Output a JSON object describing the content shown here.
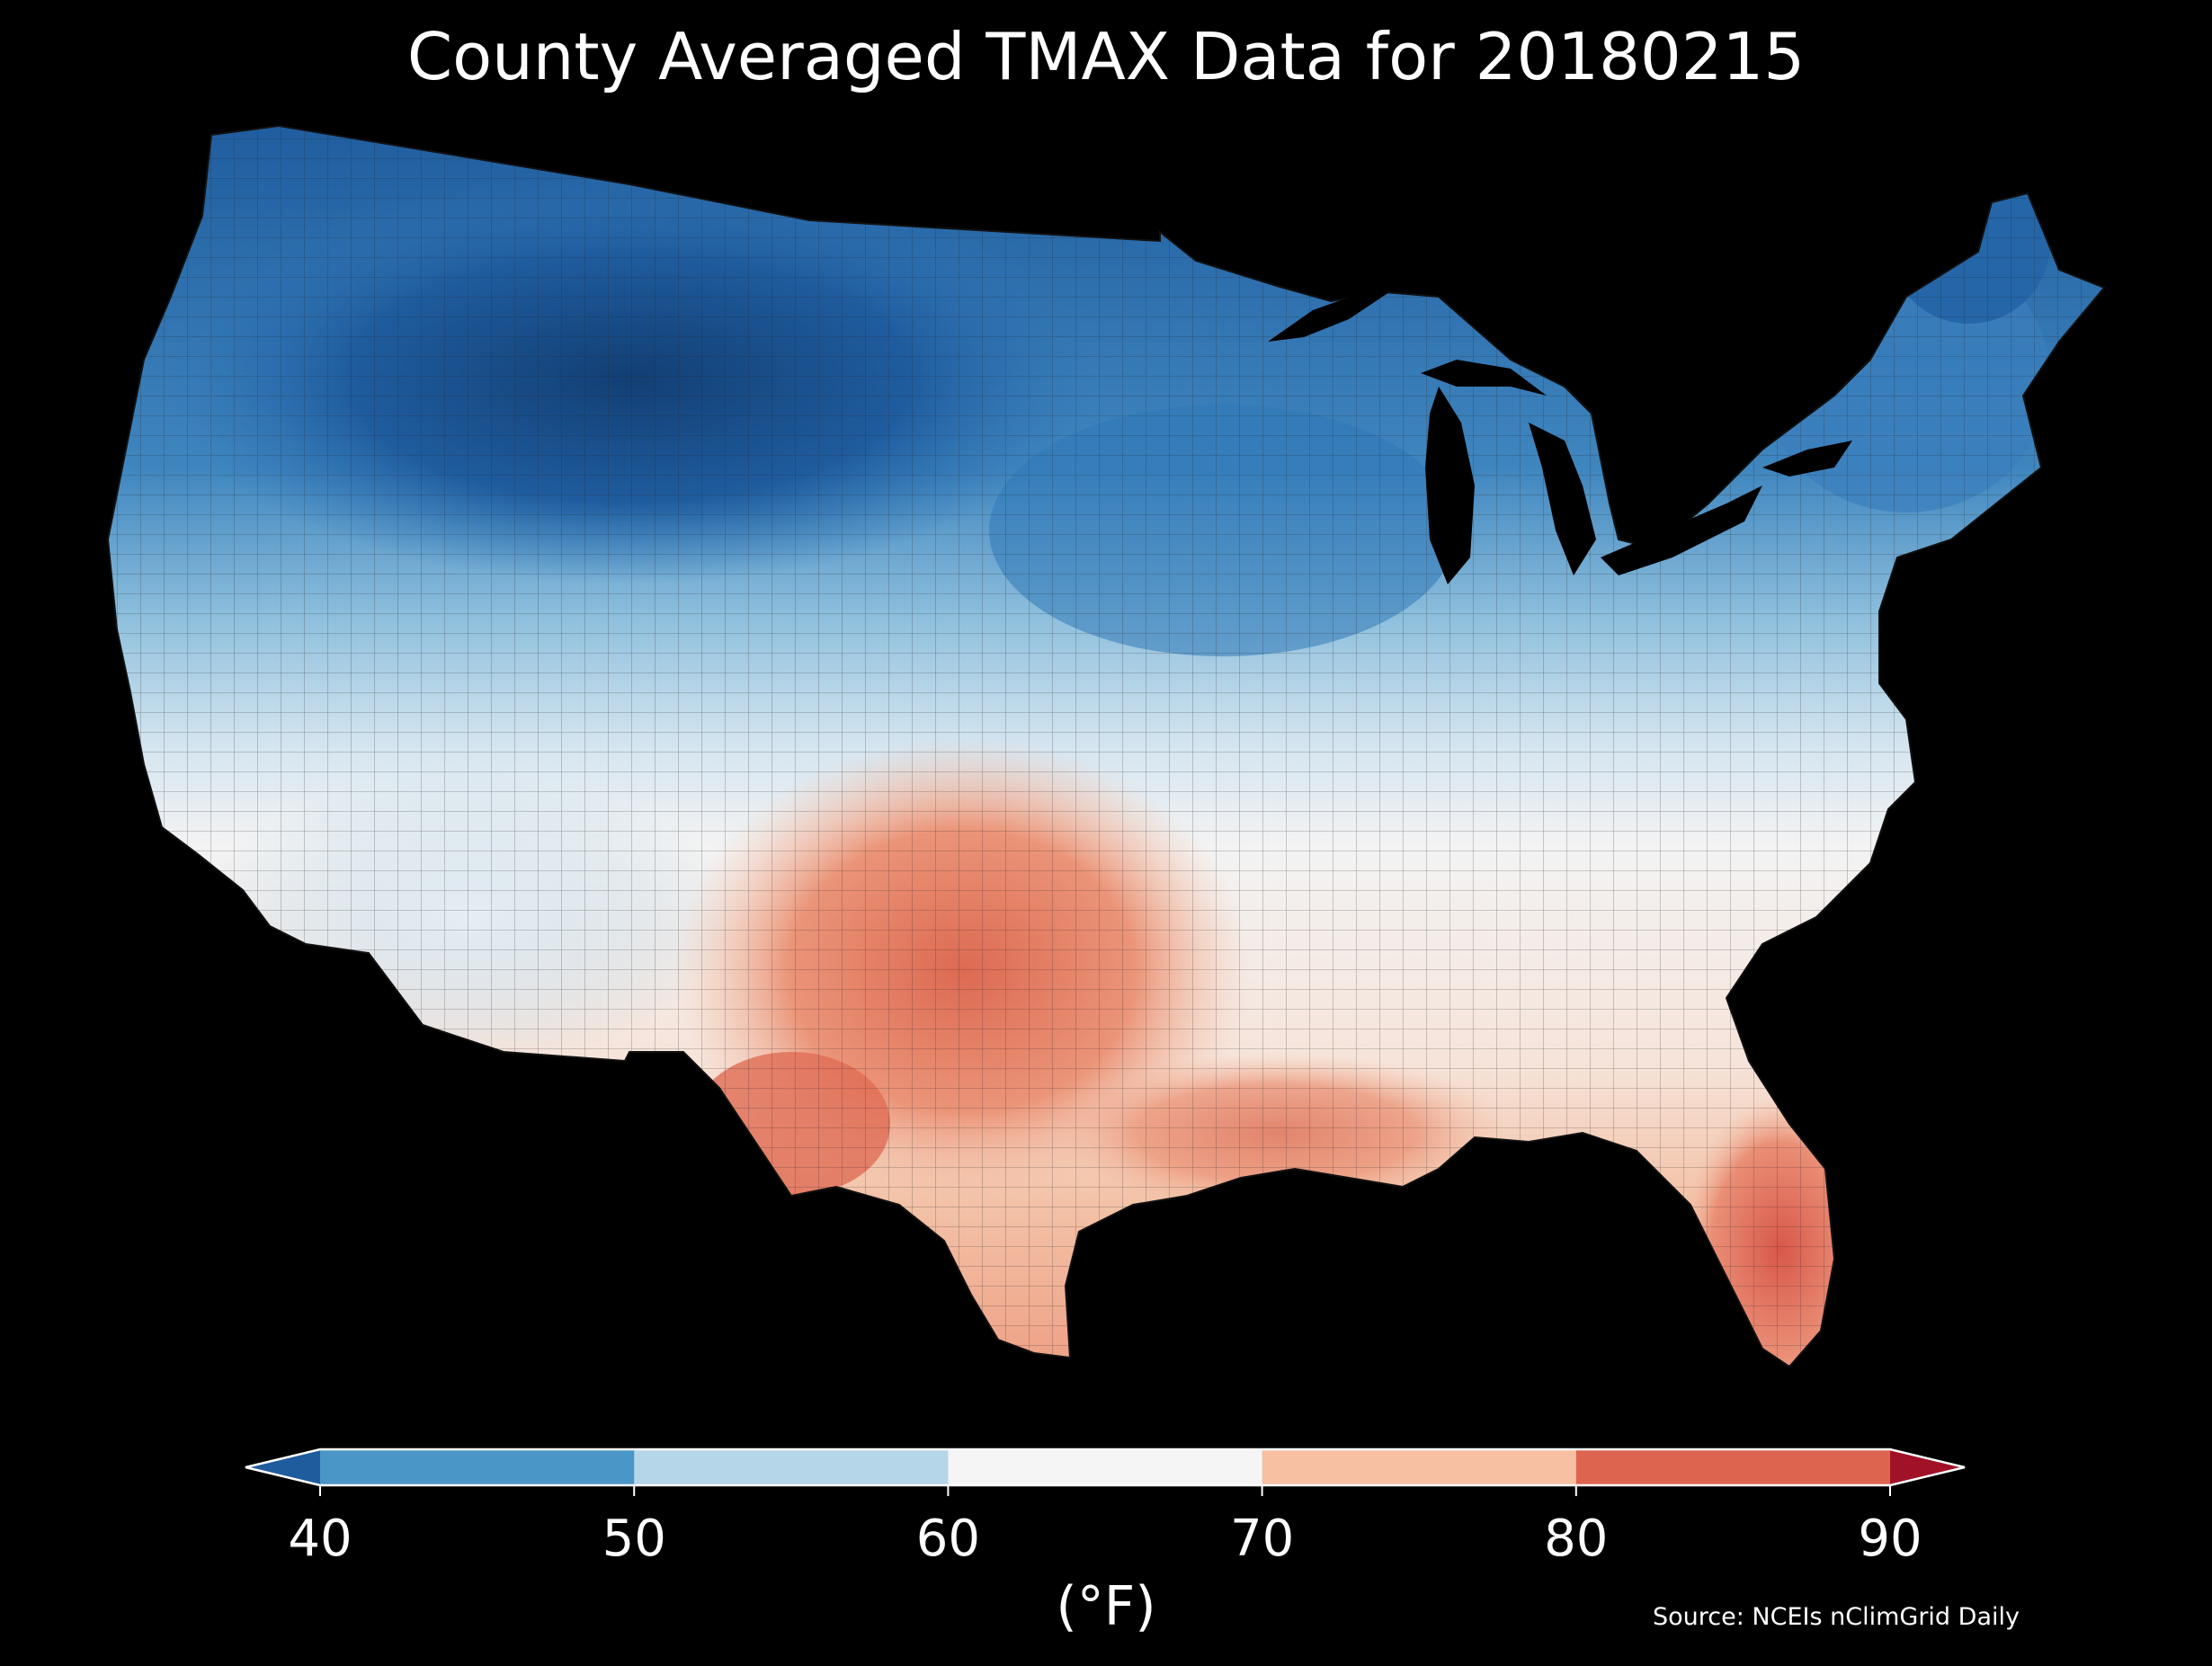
{
  "title": "County Averaged TMAX Data for 20180215",
  "colorbar": {
    "label": "(°F)",
    "ticks": [
      "40",
      "50",
      "60",
      "70",
      "80",
      "90"
    ],
    "bins": [
      {
        "range": "<40",
        "color": "#1f5c9e"
      },
      {
        "range": "40-50",
        "color": "#4a96c6"
      },
      {
        "range": "50-60",
        "color": "#b5d6e8"
      },
      {
        "range": "60-70",
        "color": "#f5f5f5"
      },
      {
        "range": "70-80",
        "color": "#f7c0a2"
      },
      {
        "range": "80-90",
        "color": "#dd6550"
      },
      {
        "range": ">90",
        "color": "#a11228"
      }
    ]
  },
  "source": "Source: NCEIs nClimGrid Daily",
  "map": {
    "subject": "Contiguous United States county-level maximum temperature",
    "background": "#000000",
    "county_border_color": "#1a1a1a"
  }
}
